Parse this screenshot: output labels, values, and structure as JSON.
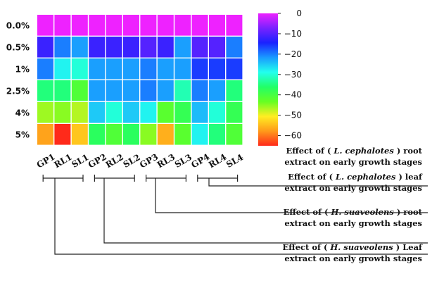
{
  "chart_data": {
    "type": "heatmap",
    "rows": [
      "0.0%",
      "0.5%",
      "1%",
      "2.5%",
      "4%",
      "5%"
    ],
    "columns": [
      "GP1",
      "RL1",
      "SL1",
      "GP2",
      "RL2",
      "SL2",
      "GP3",
      "RL3",
      "SL3",
      "GP4",
      "RL4",
      "SL4"
    ],
    "values": [
      [
        0,
        0,
        0,
        0,
        0,
        0,
        0,
        0,
        0,
        0,
        0,
        0
      ],
      [
        -12,
        -20,
        -22,
        -12,
        -12,
        -12,
        -10,
        -12,
        -22,
        -10,
        -10,
        -20
      ],
      [
        -20,
        -28,
        -30,
        -22,
        -22,
        -22,
        -20,
        -22,
        -22,
        -16,
        -16,
        -16
      ],
      [
        -35,
        -35,
        -41,
        -22,
        -22,
        -22,
        -20,
        -22,
        -32,
        -20,
        -22,
        -35
      ],
      [
        -46,
        -45,
        -47,
        -25,
        -30,
        -25,
        -28,
        -42,
        -38,
        -24,
        -30,
        -38
      ],
      [
        -57,
        -66,
        -54,
        -37,
        -41,
        -37,
        -45,
        -56,
        -42,
        -28,
        -35,
        -41
      ]
    ],
    "colorbar": {
      "min": -65,
      "max": 0,
      "ticks": [
        0,
        -10,
        -20,
        -30,
        -40,
        -50,
        -60
      ]
    },
    "colorscale": [
      "#ff2a1a",
      "#ff9a1a",
      "#ffee22",
      "#66ff22",
      "#22ff66",
      "#22ffee",
      "#1a9aff",
      "#1a22ff",
      "#7a22ff",
      "#ee22ff"
    ],
    "groups": [
      {
        "columns": [
          "GP1",
          "RL1",
          "SL1"
        ],
        "label_line1": "Effect of (",
        "species": "H. suaveolens",
        "label_line1_end": ") Leaf",
        "label_line2": "extract on early growth stages"
      },
      {
        "columns": [
          "GP2",
          "RL2",
          "SL2"
        ],
        "label_line1": "Effect of (",
        "species": "H. suaveolens",
        "label_line1_end": ") root",
        "label_line2": "extract on early growth stages"
      },
      {
        "columns": [
          "GP3",
          "RL3",
          "SL3"
        ],
        "label_line1": "Effect of (",
        "species": "L. cephalotes",
        "label_line1_end": ") leaf",
        "label_line2": "extract on early growth stages"
      },
      {
        "columns": [
          "GP4",
          "RL4",
          "SL4"
        ],
        "label_line1": "Effect of (",
        "species": "L. cephalotes",
        "label_line1_end": ") root",
        "label_line2": "extract on early growth stages"
      }
    ]
  }
}
